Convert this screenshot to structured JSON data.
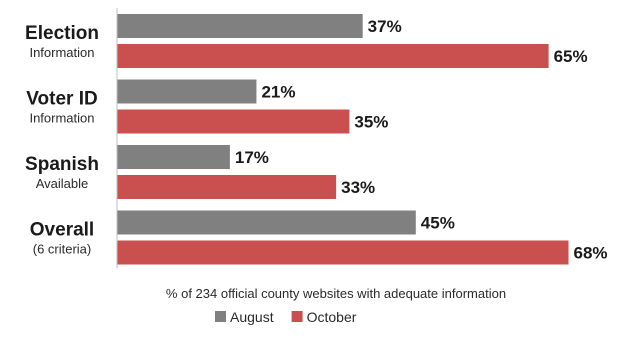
{
  "chart_data": {
    "type": "bar",
    "orientation": "horizontal",
    "categories": [
      {
        "main": "Election",
        "sub": "Information"
      },
      {
        "main": "Voter ID",
        "sub": "Information"
      },
      {
        "main": "Spanish",
        "sub": "Available"
      },
      {
        "main": "Overall",
        "sub": "(6 criteria)"
      }
    ],
    "series": [
      {
        "name": "August",
        "color": "#808080",
        "values": [
          37,
          21,
          17,
          45
        ],
        "labels": [
          "37%",
          "21%",
          "17%",
          "45%"
        ]
      },
      {
        "name": "October",
        "color": "#c9504f",
        "values": [
          65,
          35,
          33,
          68
        ],
        "labels": [
          "65%",
          "35%",
          "33%",
          "68%"
        ]
      }
    ],
    "xlabel": "% of 234 official county websites with adequate information",
    "xlim": [
      0,
      68
    ],
    "legend_position": "bottom",
    "grid": false
  }
}
